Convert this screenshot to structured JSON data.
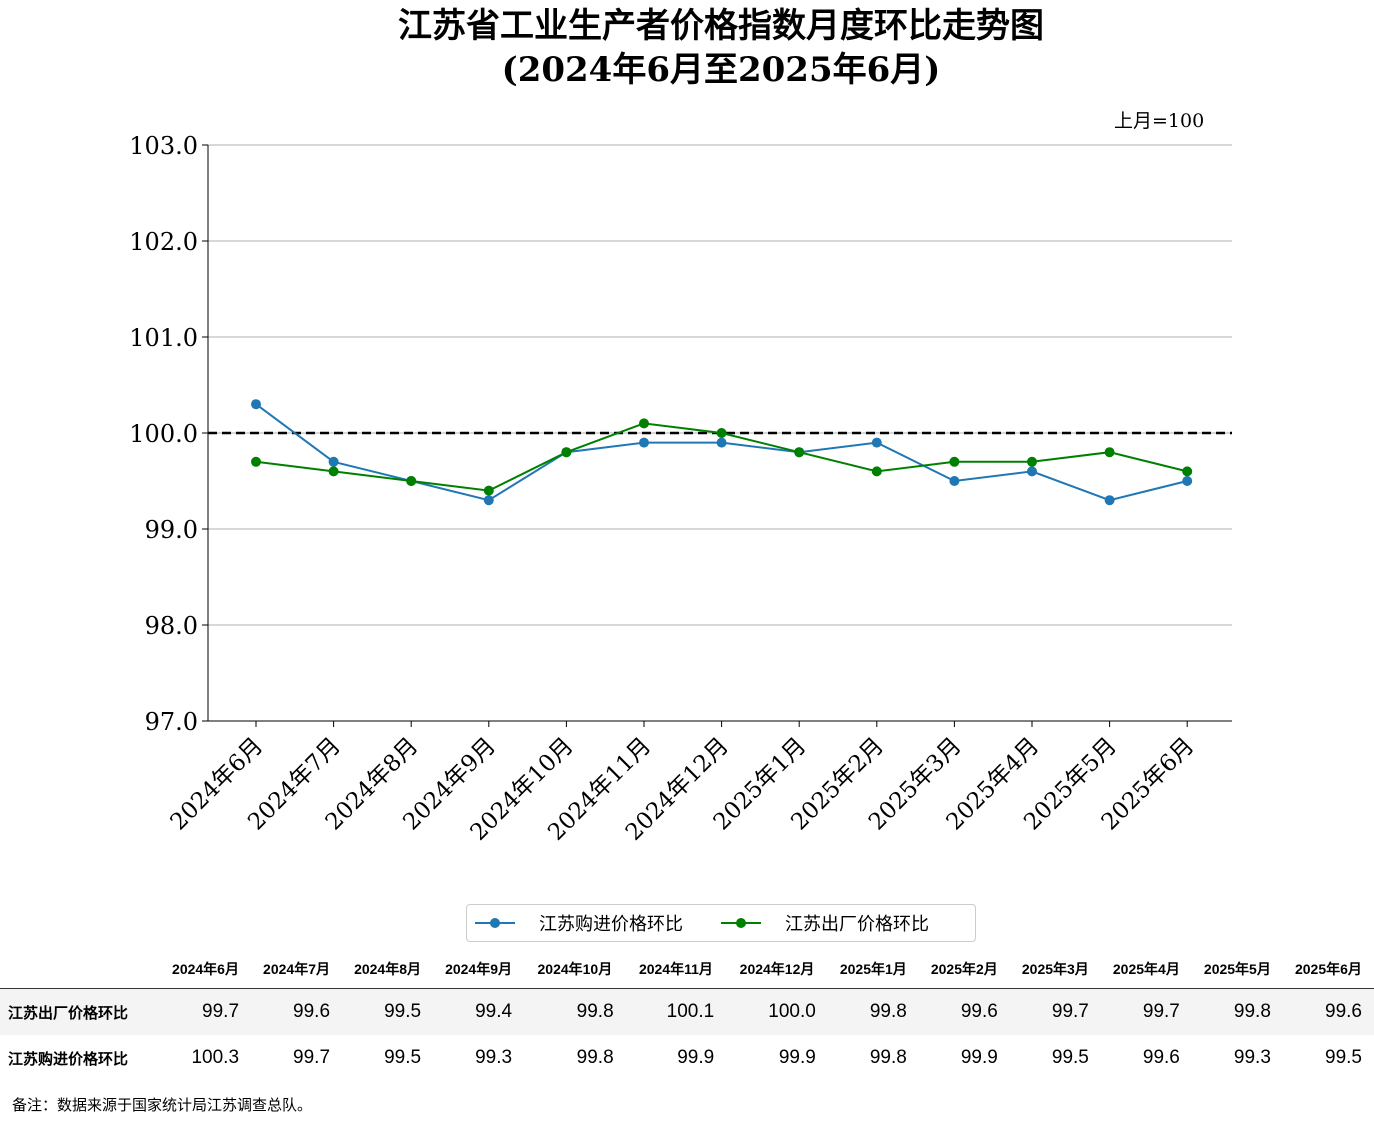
{
  "title": {
    "line1": "江苏省工业生产者价格指数月度环比走势图",
    "line2": "(2024年6月至2025年6月)"
  },
  "unit_label": "上月=100",
  "colors": {
    "purchase": "#1f77b4",
    "factory": "#008000",
    "reference": "#000000",
    "grid": "#b0b0b0"
  },
  "chart_data": {
    "type": "line",
    "categories": [
      "2024年6月",
      "2024年7月",
      "2024年8月",
      "2024年9月",
      "2024年10月",
      "2024年11月",
      "2024年12月",
      "2025年1月",
      "2025年2月",
      "2025年3月",
      "2025年4月",
      "2025年5月",
      "2025年6月"
    ],
    "series": [
      {
        "name": "江苏购进价格环比",
        "color_key": "purchase",
        "values": [
          100.3,
          99.7,
          99.5,
          99.3,
          99.8,
          99.9,
          99.9,
          99.8,
          99.9,
          99.5,
          99.6,
          99.3,
          99.5
        ]
      },
      {
        "name": "江苏出厂价格环比",
        "color_key": "factory",
        "values": [
          99.7,
          99.6,
          99.5,
          99.4,
          99.8,
          100.1,
          100.0,
          99.8,
          99.6,
          99.7,
          99.7,
          99.8,
          99.6
        ]
      }
    ],
    "ylim": [
      97.0,
      103.0
    ],
    "yticks": [
      "97.0",
      "98.0",
      "99.0",
      "100.0",
      "101.0",
      "102.0",
      "103.0"
    ],
    "reference_line": 100.0,
    "grid": "horizontal",
    "legend_position": "bottom-center"
  },
  "table": {
    "headers": [
      "2024年6月",
      "2024年7月",
      "2024年8月",
      "2024年9月",
      "2024年10月",
      "2024年11月",
      "2024年12月",
      "2025年1月",
      "2025年2月",
      "2025年3月",
      "2025年4月",
      "2025年5月",
      "2025年6月"
    ],
    "rows": [
      {
        "label": "江苏出厂价格环比",
        "cells": [
          "99.7",
          "99.6",
          "99.5",
          "99.4",
          "99.8",
          "100.1",
          "100.0",
          "99.8",
          "99.6",
          "99.7",
          "99.7",
          "99.8",
          "99.6"
        ]
      },
      {
        "label": "江苏购进价格环比",
        "cells": [
          "100.3",
          "99.7",
          "99.5",
          "99.3",
          "99.8",
          "99.9",
          "99.9",
          "99.8",
          "99.9",
          "99.5",
          "99.6",
          "99.3",
          "99.5"
        ]
      }
    ]
  },
  "note": "备注：数据来源于国家统计局江苏调查总队。"
}
